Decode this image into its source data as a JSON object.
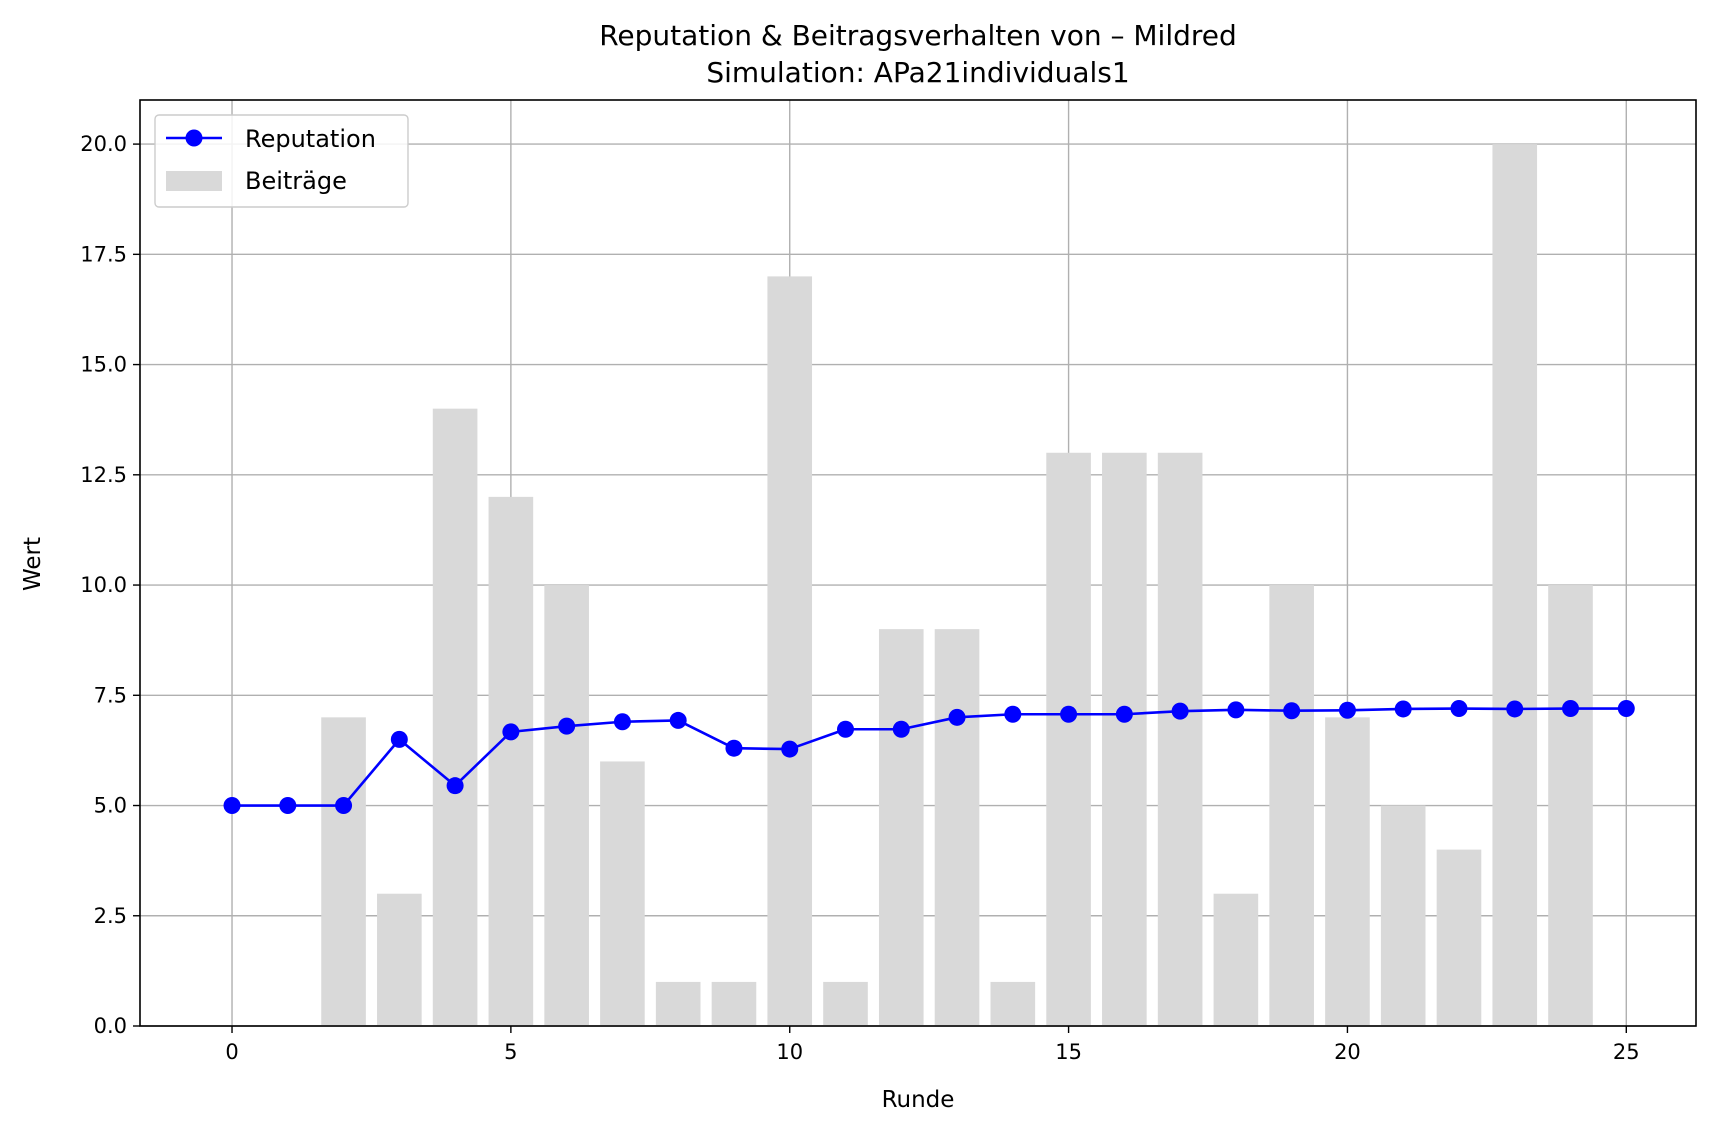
{
  "chart_data": {
    "type": "bar+line",
    "title": "Reputation & Beitragsverhalten von – Mildred",
    "subtitle": "Simulation: APa21individuals1",
    "xlabel": "Runde",
    "ylabel": "Wert",
    "xlim": [
      -1.65,
      26.25
    ],
    "ylim": [
      0,
      21
    ],
    "xticks": [
      0,
      5,
      10,
      15,
      20,
      25
    ],
    "yticks": [
      0.0,
      2.5,
      5.0,
      7.5,
      10.0,
      12.5,
      15.0,
      17.5,
      20.0
    ],
    "xtick_labels": [
      "0",
      "5",
      "10",
      "15",
      "20",
      "25"
    ],
    "ytick_labels": [
      "0.0",
      "2.5",
      "5.0",
      "7.5",
      "10.0",
      "12.5",
      "15.0",
      "17.5",
      "20.0"
    ],
    "grid": true,
    "legend_position": "top-left",
    "legend": [
      {
        "label": "Reputation",
        "kind": "line-marker",
        "color": "#0000ff"
      },
      {
        "label": "Beiträge",
        "kind": "bar",
        "color": "#d9d9d9"
      }
    ],
    "series": [
      {
        "name": "Beiträge",
        "kind": "bar",
        "color": "#d9d9d9",
        "x": [
          2,
          3,
          4,
          5,
          6,
          7,
          8,
          9,
          10,
          11,
          12,
          13,
          14,
          15,
          16,
          17,
          18,
          19,
          20,
          21,
          22,
          23,
          24
        ],
        "values": [
          7,
          3,
          14,
          12,
          10,
          6,
          1,
          1,
          17,
          1,
          9,
          9,
          1,
          13,
          13,
          13,
          3,
          10,
          7,
          5,
          4,
          20,
          10
        ]
      },
      {
        "name": "Reputation",
        "kind": "line",
        "color": "#0000ff",
        "x": [
          0,
          1,
          2,
          3,
          4,
          5,
          6,
          7,
          8,
          9,
          10,
          11,
          12,
          13,
          14,
          15,
          16,
          17,
          18,
          19,
          20,
          21,
          22,
          23,
          24,
          25
        ],
        "values": [
          5.0,
          5.0,
          5.0,
          6.5,
          5.45,
          6.67,
          6.8,
          6.9,
          6.93,
          6.3,
          6.28,
          6.73,
          6.73,
          7.0,
          7.07,
          7.07,
          7.07,
          7.14,
          7.17,
          7.15,
          7.16,
          7.19,
          7.2,
          7.19,
          7.2,
          7.2
        ]
      }
    ]
  }
}
